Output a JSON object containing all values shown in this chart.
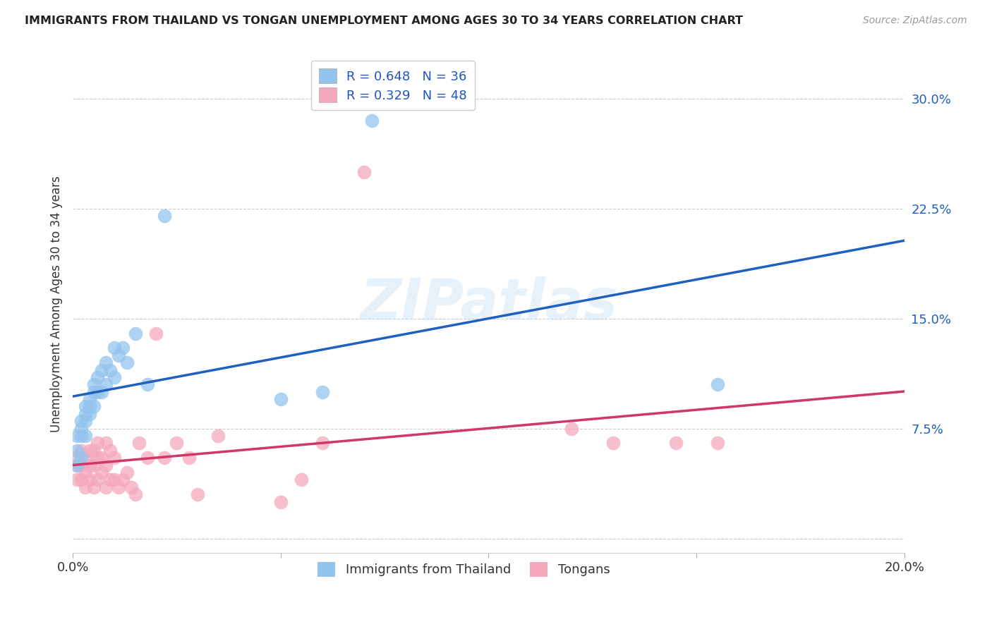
{
  "title": "IMMIGRANTS FROM THAILAND VS TONGAN UNEMPLOYMENT AMONG AGES 30 TO 34 YEARS CORRELATION CHART",
  "source": "Source: ZipAtlas.com",
  "ylabel": "Unemployment Among Ages 30 to 34 years",
  "xlim": [
    0.0,
    0.2
  ],
  "ylim": [
    -0.01,
    0.33
  ],
  "yticks": [
    0.0,
    0.075,
    0.15,
    0.225,
    0.3
  ],
  "ytick_labels": [
    "",
    "7.5%",
    "15.0%",
    "22.5%",
    "30.0%"
  ],
  "xticks": [
    0.0,
    0.05,
    0.1,
    0.15,
    0.2
  ],
  "xtick_labels": [
    "0.0%",
    "",
    "",
    "",
    "20.0%"
  ],
  "blue_R": 0.648,
  "blue_N": 36,
  "pink_R": 0.329,
  "pink_N": 48,
  "blue_color": "#93C4EE",
  "pink_color": "#F5A8BC",
  "blue_line_color": "#2060C0",
  "pink_line_color": "#D03868",
  "background_color": "#FFFFFF",
  "watermark": "ZIPatlas",
  "legend_label_blue": "Immigrants from Thailand",
  "legend_label_pink": "Tongans",
  "blue_x": [
    0.001,
    0.001,
    0.001,
    0.002,
    0.002,
    0.002,
    0.002,
    0.003,
    0.003,
    0.003,
    0.003,
    0.004,
    0.004,
    0.004,
    0.005,
    0.005,
    0.005,
    0.006,
    0.006,
    0.007,
    0.007,
    0.008,
    0.008,
    0.009,
    0.01,
    0.01,
    0.011,
    0.012,
    0.013,
    0.015,
    0.018,
    0.022,
    0.05,
    0.06,
    0.072,
    0.155
  ],
  "blue_y": [
    0.05,
    0.06,
    0.07,
    0.055,
    0.07,
    0.075,
    0.08,
    0.07,
    0.08,
    0.085,
    0.09,
    0.085,
    0.09,
    0.095,
    0.09,
    0.1,
    0.105,
    0.1,
    0.11,
    0.1,
    0.115,
    0.105,
    0.12,
    0.115,
    0.11,
    0.13,
    0.125,
    0.13,
    0.12,
    0.14,
    0.105,
    0.22,
    0.095,
    0.1,
    0.285,
    0.105
  ],
  "pink_x": [
    0.001,
    0.001,
    0.001,
    0.002,
    0.002,
    0.002,
    0.003,
    0.003,
    0.003,
    0.004,
    0.004,
    0.004,
    0.005,
    0.005,
    0.005,
    0.006,
    0.006,
    0.006,
    0.007,
    0.007,
    0.008,
    0.008,
    0.008,
    0.009,
    0.009,
    0.01,
    0.01,
    0.011,
    0.012,
    0.013,
    0.014,
    0.015,
    0.016,
    0.018,
    0.02,
    0.022,
    0.025,
    0.028,
    0.03,
    0.035,
    0.05,
    0.055,
    0.06,
    0.07,
    0.12,
    0.13,
    0.145,
    0.155
  ],
  "pink_y": [
    0.04,
    0.05,
    0.055,
    0.04,
    0.05,
    0.06,
    0.035,
    0.045,
    0.055,
    0.04,
    0.05,
    0.06,
    0.035,
    0.05,
    0.06,
    0.04,
    0.055,
    0.065,
    0.045,
    0.055,
    0.035,
    0.05,
    0.065,
    0.04,
    0.06,
    0.04,
    0.055,
    0.035,
    0.04,
    0.045,
    0.035,
    0.03,
    0.065,
    0.055,
    0.14,
    0.055,
    0.065,
    0.055,
    0.03,
    0.07,
    0.025,
    0.04,
    0.065,
    0.25,
    0.075,
    0.065,
    0.065,
    0.065
  ]
}
